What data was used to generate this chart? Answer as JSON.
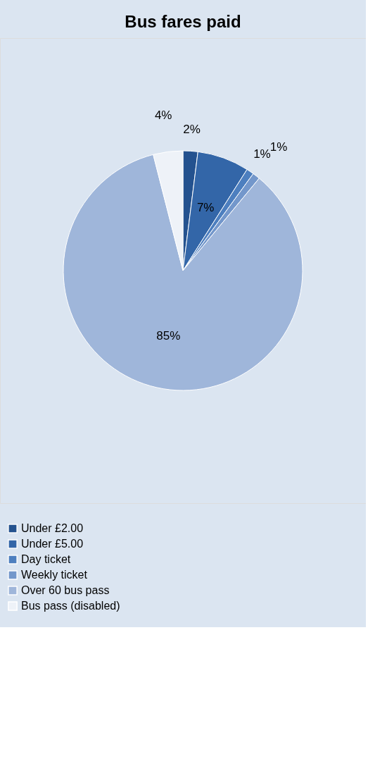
{
  "chart_data": {
    "type": "pie",
    "title": "Bus fares paid",
    "categories": [
      "Under £2.00",
      "Under £5.00",
      "Day ticket",
      "Weekly ticket",
      "Over 60 bus pass",
      "Bus pass (disabled)"
    ],
    "values": [
      2,
      7,
      1,
      1,
      85,
      4
    ],
    "value_labels": [
      "2%",
      "7%",
      "1%",
      "1%",
      "85%",
      "4%"
    ],
    "colors": [
      "#24528f",
      "#3366a8",
      "#4d7fbf",
      "#7397cb",
      "#9fb6da",
      "#eef2f8"
    ],
    "legend": "bottom"
  }
}
